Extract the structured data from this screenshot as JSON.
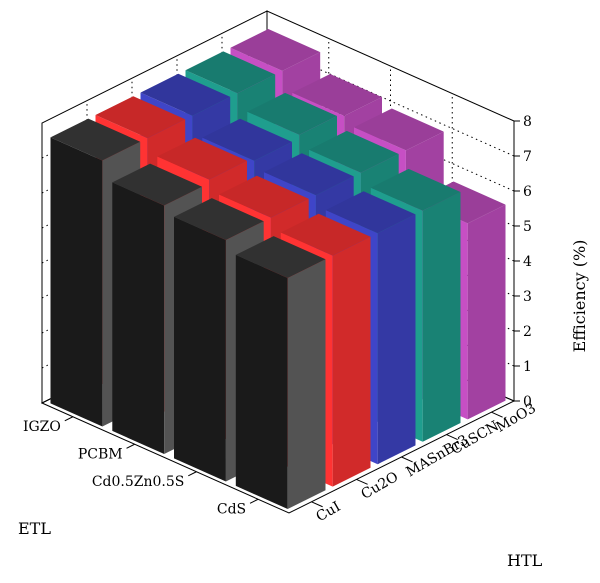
{
  "chart_data": {
    "type": "bar3d",
    "title": "",
    "xlabel": "ETL",
    "ylabel": "HTL",
    "zlabel": "Efficiency (%)",
    "zlim": [
      0,
      8
    ],
    "zticks": [
      0,
      1,
      2,
      3,
      4,
      5,
      6,
      7,
      8
    ],
    "etl_categories": [
      "IGZO",
      "PCBM",
      "Cd0.5Zn0.5S",
      "CdS"
    ],
    "htl_categories": [
      "CuI",
      "Cu2O",
      "MASnBr3",
      "CuSCN",
      "MoO3"
    ],
    "grid": true,
    "series": [
      {
        "htl": "CuI",
        "color": "#1a1a1a",
        "values": [
          7.6,
          7.1,
          6.9,
          6.6
        ]
      },
      {
        "htl": "Cu2O",
        "color": "#ff3333",
        "values": [
          7.6,
          7.2,
          6.9,
          6.6
        ]
      },
      {
        "htl": "MASnBr3",
        "color": "#3f45c8",
        "values": [
          7.6,
          7.1,
          6.9,
          6.6
        ]
      },
      {
        "htl": "CuSCN",
        "color": "#1f9e8e",
        "values": [
          7.6,
          7.2,
          6.9,
          6.6
        ]
      },
      {
        "htl": "MoO3",
        "color": "#c64fc4",
        "values": [
          7.6,
          7.1,
          6.9,
          5.6
        ]
      }
    ]
  }
}
